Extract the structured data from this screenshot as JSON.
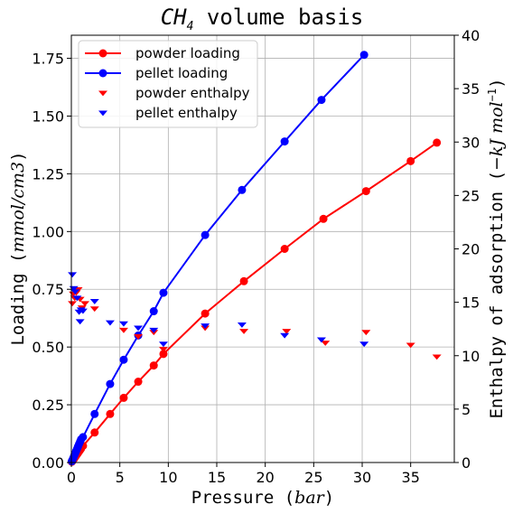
{
  "chart_data": {
    "type": "line",
    "title": "CH4 volume basis",
    "title_parts": {
      "base": "CH",
      "sub": "4",
      "rest": " volume basis"
    },
    "xlabel": "Pressure (bar)",
    "xlabel_parts": {
      "pre": "Pressure (",
      "var": "bar",
      "post": ")"
    },
    "ylabel": "Loading (mmol/cm3)",
    "ylabel_parts": {
      "pre": "Loading (",
      "var": "mmol/cm3",
      "post": ")"
    },
    "y2label": "Enthalpy of adsorption (−kJ mol⁻¹)",
    "y2label_parts": {
      "pre": "Enthalpy of adsorption (",
      "var": "−kJ mol",
      "sup": "−1",
      "post": ")"
    },
    "xlim": [
      0,
      39.5
    ],
    "ylim": [
      0,
      1.85
    ],
    "y2lim": [
      0,
      40
    ],
    "xticks": [
      "0",
      "5",
      "10",
      "15",
      "20",
      "25",
      "30",
      "35"
    ],
    "yticks": [
      "0.00",
      "0.25",
      "0.50",
      "0.75",
      "1.00",
      "1.25",
      "1.50",
      "1.75"
    ],
    "y2ticks": [
      "0",
      "5",
      "10",
      "15",
      "20",
      "25",
      "30",
      "35",
      "40"
    ],
    "grid": true,
    "legend_position": "top-left",
    "series": [
      {
        "name": "powder loading",
        "axis": "left",
        "kind": "line",
        "color": "#ff0000",
        "x": [
          0.05,
          0.1,
          0.2,
          0.3,
          0.4,
          0.5,
          0.6,
          0.7,
          0.8,
          0.9,
          1.0,
          1.2,
          2.4,
          4.0,
          5.4,
          6.9,
          8.5,
          9.5,
          13.8,
          17.8,
          22.0,
          26.0,
          30.4,
          35.0,
          37.7
        ],
        "values": [
          0.003,
          0.006,
          0.012,
          0.018,
          0.024,
          0.03,
          0.036,
          0.042,
          0.048,
          0.054,
          0.06,
          0.072,
          0.13,
          0.21,
          0.28,
          0.35,
          0.42,
          0.47,
          0.645,
          0.785,
          0.925,
          1.055,
          1.175,
          1.305,
          1.385
        ]
      },
      {
        "name": "pellet loading",
        "axis": "left",
        "kind": "line",
        "color": "#0000ff",
        "x": [
          0.05,
          0.1,
          0.2,
          0.3,
          0.4,
          0.5,
          0.6,
          0.7,
          0.8,
          0.9,
          1.0,
          1.2,
          2.4,
          4.0,
          5.4,
          6.9,
          8.5,
          9.5,
          13.8,
          17.6,
          22.0,
          25.8,
          30.2
        ],
        "values": [
          0.005,
          0.01,
          0.02,
          0.03,
          0.04,
          0.05,
          0.06,
          0.07,
          0.08,
          0.09,
          0.1,
          0.11,
          0.21,
          0.34,
          0.445,
          0.55,
          0.655,
          0.735,
          0.985,
          1.18,
          1.39,
          1.57,
          1.765
        ]
      },
      {
        "name": "powder enthalpy",
        "axis": "right",
        "kind": "marker",
        "marker": "triangle-down",
        "color": "#ff0000",
        "x": [
          0.1,
          0.2,
          0.35,
          0.5,
          0.7,
          0.9,
          1.1,
          1.4,
          2.4,
          5.4,
          6.9,
          8.5,
          9.5,
          13.8,
          17.8,
          22.2,
          26.2,
          30.4,
          35.0,
          37.7
        ],
        "values": [
          14.9,
          15.8,
          15.4,
          15.9,
          16.2,
          15.3,
          14.5,
          14.9,
          14.4,
          12.4,
          11.8,
          12.2,
          10.6,
          12.6,
          12.3,
          12.3,
          11.2,
          12.2,
          11.0,
          9.9
        ]
      },
      {
        "name": "pellet enthalpy",
        "axis": "right",
        "kind": "marker",
        "marker": "triangle-down",
        "color": "#0000ff",
        "x": [
          0.1,
          0.25,
          0.4,
          0.6,
          0.8,
          0.9,
          1.0,
          1.2,
          2.4,
          4.0,
          5.4,
          6.9,
          8.5,
          9.5,
          13.8,
          17.6,
          22.0,
          25.8,
          30.2
        ],
        "values": [
          17.6,
          16.3,
          16.0,
          15.4,
          14.1,
          13.2,
          14.3,
          14.2,
          15.1,
          13.1,
          13.0,
          12.6,
          12.4,
          11.1,
          12.8,
          12.9,
          11.9,
          11.5,
          11.1
        ]
      }
    ]
  }
}
